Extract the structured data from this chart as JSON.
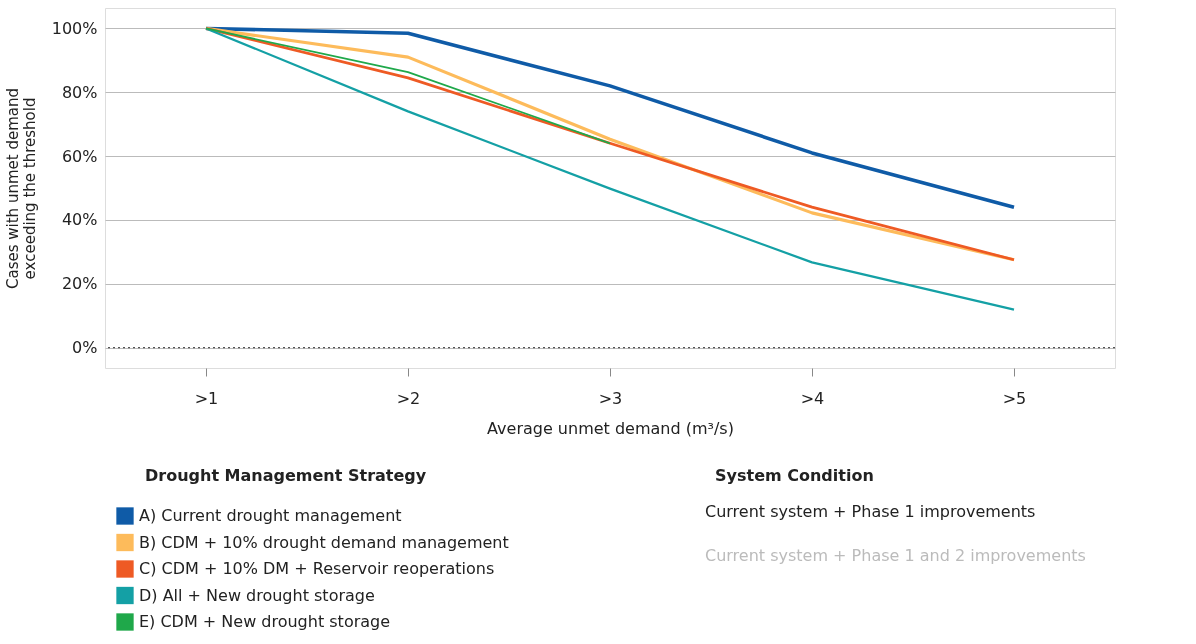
{
  "chart_data": {
    "type": "line",
    "xlabel": "Average unmet demand (m³/s)",
    "ylabel": "Cases with unmet demand exceeding the threshold",
    "legend_title": "Drought Management Strategy",
    "legend": "bottom left",
    "categories": [
      ">1",
      ">2",
      ">3",
      ">4",
      ">5"
    ],
    "ylim": [
      -6.4,
      106.4
    ],
    "yticks": [
      {
        "value": 0,
        "label": "0%"
      },
      {
        "value": 20,
        "label": "20%"
      },
      {
        "value": 40,
        "label": "40%"
      },
      {
        "value": 60,
        "label": "60%"
      },
      {
        "value": 80,
        "label": "80%"
      },
      {
        "value": 100,
        "label": "100%"
      }
    ],
    "grid": "y",
    "marker": "none",
    "line_style": "solid",
    "ref_lines": [
      {
        "axis": "y",
        "value": 0,
        "line_style": "dotted",
        "color": "#555555"
      }
    ],
    "annotations": [
      "System Condition",
      "Current system + Phase 1 improvements",
      "Current system + Phase 1 and 2 improvements"
    ],
    "series": [
      {
        "name": "A) Current drought management",
        "color": "#0f5ba7",
        "values": [
          100,
          98.5,
          82,
          61,
          44
        ]
      },
      {
        "name": "B) CDM + 10% drought demand management",
        "color": "#fdbb5b",
        "values": [
          100,
          91,
          65.3,
          42.2,
          27.5
        ]
      },
      {
        "name": "C) CDM + 10% DM + Reservoir reoperations",
        "color": "#ee5a24",
        "values": [
          100,
          84.5,
          64,
          44,
          27.5
        ]
      },
      {
        "name": "D) All + New drought storage",
        "color": "#14a0a5",
        "values": [
          100,
          74,
          49.8,
          26.7,
          11.9
        ]
      },
      {
        "name": "E) CDM + New drought storage",
        "color": "#1fa84a",
        "values": [
          100,
          86.3,
          64,
          null,
          null
        ]
      }
    ]
  }
}
